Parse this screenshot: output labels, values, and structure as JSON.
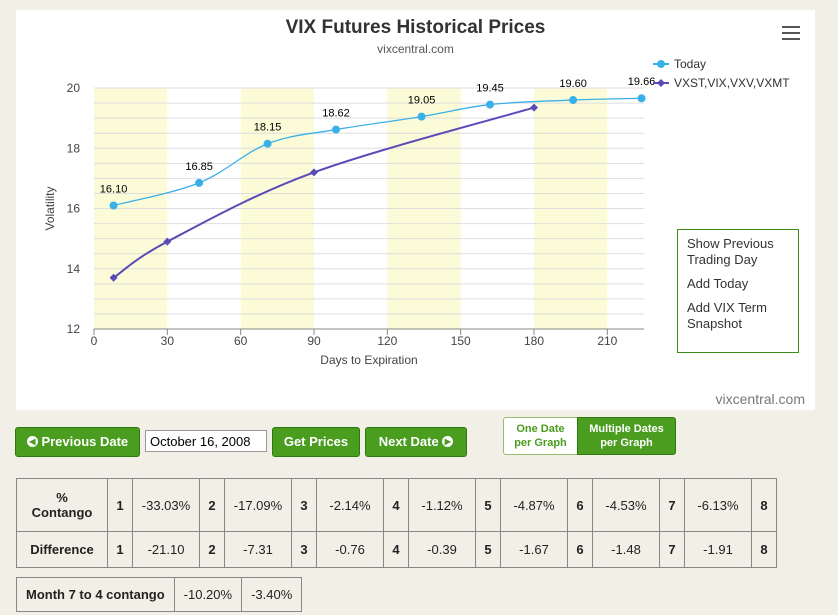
{
  "chart": {
    "title": "VIX Futures Historical Prices",
    "subtitle": "vixcentral.com",
    "credit": "vixcentral.com",
    "menu_icon": "hamburger-menu-icon",
    "context_menu": [
      "Show Previous Trading Day",
      "Add Today",
      "Add VIX Term Snapshot"
    ]
  },
  "chart_data": {
    "type": "line",
    "title": "VIX Futures Historical Prices",
    "subtitle": "vixcentral.com",
    "xlabel": "Days to Expiration",
    "ylabel": "Volatility",
    "xlim": [
      0,
      225
    ],
    "ylim": [
      12,
      20
    ],
    "x_ticks": [
      "0",
      "30",
      "60",
      "90",
      "120",
      "150",
      "180",
      "210"
    ],
    "y_ticks": [
      "12",
      "14",
      "16",
      "18",
      "20"
    ],
    "grid": true,
    "legend_position": "top-right",
    "series": [
      {
        "name": "Today",
        "color": "#3ab0e8",
        "x": [
          8,
          43,
          71,
          99,
          134,
          162,
          196,
          224
        ],
        "y": [
          16.1,
          16.85,
          18.15,
          18.62,
          19.05,
          19.45,
          19.6,
          19.66
        ],
        "labels": [
          "16.10",
          "16.85",
          "18.15",
          "18.62",
          "19.05",
          "19.45",
          "19.60",
          "19.66"
        ]
      },
      {
        "name": "VXST,VIX,VXV,VXMT",
        "color": "#5a4bb8",
        "x": [
          8,
          30,
          90,
          180
        ],
        "y": [
          13.7,
          14.9,
          17.2,
          19.35
        ]
      }
    ]
  },
  "controls": {
    "prev_label": "Previous Date",
    "date_value": "October 16, 2008",
    "get_prices_label": "Get Prices",
    "next_label": "Next Date",
    "toggle_one_line1": "One Date",
    "toggle_one_line2": "per Graph",
    "toggle_multi_line1": "Multiple Dates",
    "toggle_multi_line2": "per Graph"
  },
  "contango": {
    "row1_label_line1": "%",
    "row1_label_line2": "Contango",
    "row2_label": "Difference",
    "months": [
      "1",
      "2",
      "3",
      "4",
      "5",
      "6",
      "7",
      "8"
    ],
    "percent": [
      "-33.03%",
      "-17.09%",
      "-2.14%",
      "-1.12%",
      "-4.87%",
      "-4.53%",
      "-6.13%"
    ],
    "difference": [
      "-21.10",
      "-7.31",
      "-0.76",
      "-0.39",
      "-1.67",
      "-1.48",
      "-1.91"
    ]
  },
  "month7to4": {
    "label": "Month 7 to 4 contango",
    "values": [
      "-10.20%",
      "-3.40%"
    ]
  }
}
